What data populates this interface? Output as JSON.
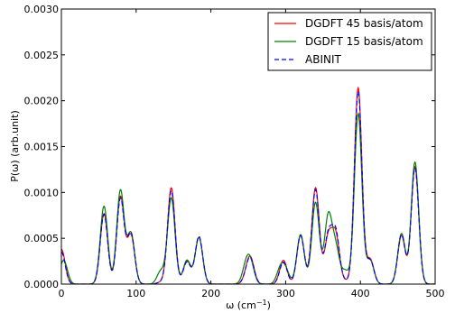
{
  "chart_data": {
    "type": "line",
    "title": "",
    "xlabel": "ω (cm⁻¹)",
    "ylabel": "P(ω) (arb.unit)",
    "xlim": [
      0,
      500
    ],
    "ylim": [
      0,
      0.003
    ],
    "x_ticks": [
      0,
      100,
      200,
      300,
      400,
      500
    ],
    "x_tick_labels": [
      "0",
      "100",
      "200",
      "300",
      "400",
      "500"
    ],
    "y_ticks": [
      0,
      0.0005,
      0.001,
      0.0015,
      0.002,
      0.0025,
      0.003
    ],
    "y_tick_labels": [
      "0.0000",
      "0.0005",
      "0.0010",
      "0.0015",
      "0.0020",
      "0.0025",
      "0.0030"
    ],
    "grid": false,
    "legend_position": "top-right",
    "peak_width": 5,
    "series": [
      {
        "name": "DGDFT 45 basis/atom",
        "color": "#ff0000",
        "dash": "solid",
        "peaks": [
          [
            0,
            0.00038
          ],
          [
            57,
            0.00077
          ],
          [
            79,
            0.00095
          ],
          [
            93,
            0.00053
          ],
          [
            133,
            2e-05
          ],
          [
            147,
            0.00105
          ],
          [
            168,
            0.00025
          ],
          [
            184,
            0.00051
          ],
          [
            248,
            7e-05
          ],
          [
            253,
            0.00026
          ],
          [
            297,
            0.00026
          ],
          [
            320,
            0.00053
          ],
          [
            340,
            0.00105
          ],
          [
            357,
            0.0005
          ],
          [
            367,
            0.00052
          ],
          [
            380,
            3e-05
          ],
          [
            397,
            0.00214
          ],
          [
            413,
            0.00027
          ],
          [
            455,
            0.00053
          ],
          [
            473,
            0.00128
          ]
        ]
      },
      {
        "name": "DGDFT 15 basis/atom",
        "color": "#008000",
        "dash": "solid",
        "peaks": [
          [
            3,
            0.00026
          ],
          [
            57,
            0.00085
          ],
          [
            79,
            0.00102
          ],
          [
            93,
            0.00055
          ],
          [
            133,
            0.00014
          ],
          [
            147,
            0.00094
          ],
          [
            168,
            0.00026
          ],
          [
            184,
            0.00051
          ],
          [
            247,
            0.00018
          ],
          [
            253,
            0.00021
          ],
          [
            293,
            0.00016
          ],
          [
            300,
            0.00014
          ],
          [
            320,
            0.00054
          ],
          [
            340,
            0.00089
          ],
          [
            357,
            0.00073
          ],
          [
            367,
            0.00038
          ],
          [
            380,
            0.00014
          ],
          [
            397,
            0.00186
          ],
          [
            413,
            0.00026
          ],
          [
            455,
            0.00055
          ],
          [
            473,
            0.00133
          ]
        ]
      },
      {
        "name": "ABINIT",
        "color": "#0000ff",
        "dash": "dashed",
        "peaks": [
          [
            0,
            0.00035
          ],
          [
            57,
            0.00076
          ],
          [
            79,
            0.00093
          ],
          [
            93,
            0.00055
          ],
          [
            133,
            2e-05
          ],
          [
            147,
            0.00102
          ],
          [
            168,
            0.00024
          ],
          [
            184,
            0.00052
          ],
          [
            248,
            7e-05
          ],
          [
            253,
            0.00025
          ],
          [
            297,
            0.00024
          ],
          [
            320,
            0.00053
          ],
          [
            340,
            0.00103
          ],
          [
            357,
            0.00052
          ],
          [
            367,
            0.00055
          ],
          [
            380,
            3e-05
          ],
          [
            397,
            0.0021
          ],
          [
            413,
            0.00026
          ],
          [
            455,
            0.00054
          ],
          [
            473,
            0.00127
          ]
        ]
      }
    ]
  }
}
